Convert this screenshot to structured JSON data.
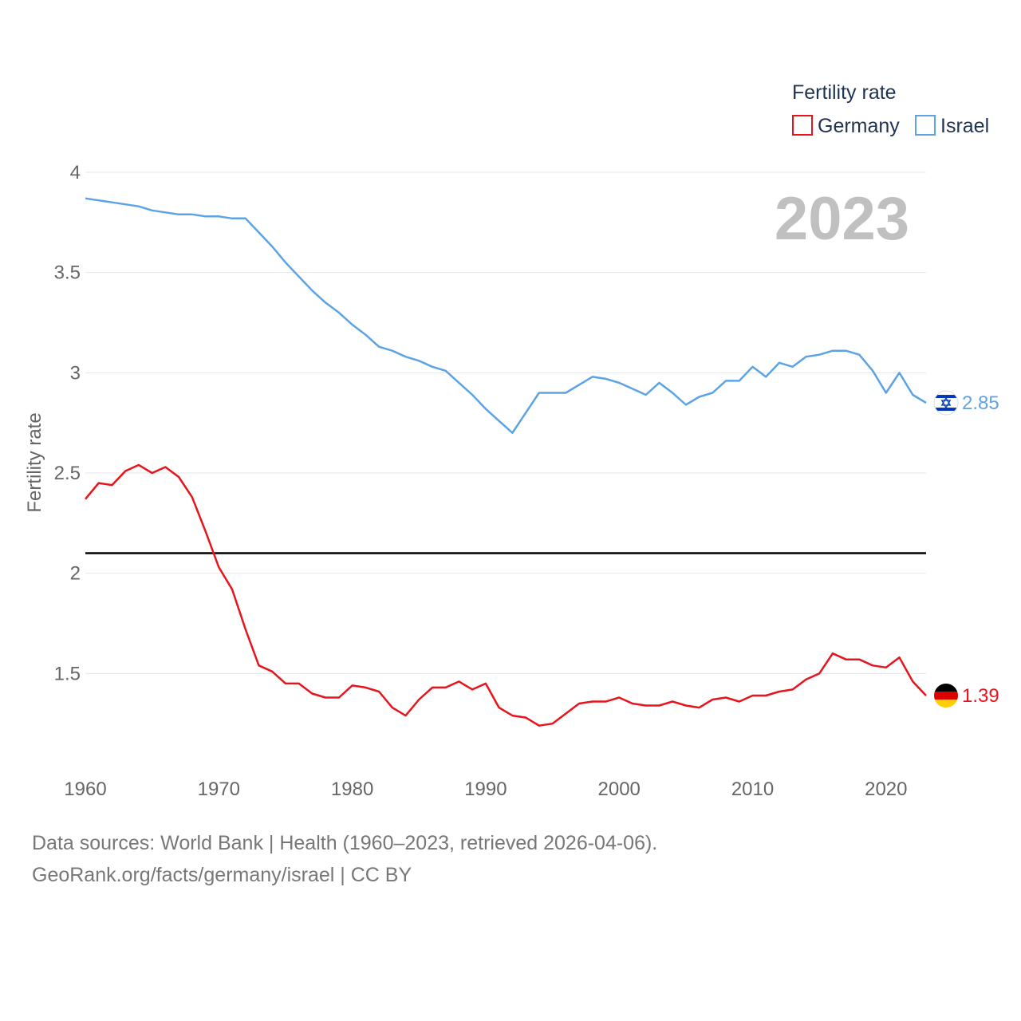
{
  "chart_data": {
    "type": "line",
    "ylabel": "Fertility rate",
    "xlabel": "",
    "ylim": [
      1.0,
      4.0
    ],
    "xlim": [
      1960,
      2023
    ],
    "y_ticks": [
      1.5,
      2,
      2.5,
      3,
      3.5,
      4
    ],
    "y_tick_labels": [
      "1.5",
      "2",
      "2.5",
      "3",
      "3.5",
      "4"
    ],
    "x_ticks": [
      1960,
      1970,
      1980,
      1990,
      2000,
      2010,
      2020
    ],
    "x_tick_labels": [
      "1960",
      "1970",
      "1980",
      "1990",
      "2000",
      "2010",
      "2020"
    ],
    "current_year_label": "2023",
    "reference_line": {
      "y": 2.1,
      "color": "#000000"
    },
    "legend": {
      "title": "Fertility rate",
      "position": "top-right"
    },
    "x": [
      1960,
      1961,
      1962,
      1963,
      1964,
      1965,
      1966,
      1967,
      1968,
      1969,
      1970,
      1971,
      1972,
      1973,
      1974,
      1975,
      1976,
      1977,
      1978,
      1979,
      1980,
      1981,
      1982,
      1983,
      1984,
      1985,
      1986,
      1987,
      1988,
      1989,
      1990,
      1991,
      1992,
      1993,
      1994,
      1995,
      1996,
      1997,
      1998,
      1999,
      2000,
      2001,
      2002,
      2003,
      2004,
      2005,
      2006,
      2007,
      2008,
      2009,
      2010,
      2011,
      2012,
      2013,
      2014,
      2015,
      2016,
      2017,
      2018,
      2019,
      2020,
      2021,
      2022,
      2023
    ],
    "series": [
      {
        "name": "Germany",
        "color": "#e8141c",
        "flag": "germany-flag",
        "end_label": "1.39",
        "values": [
          2.37,
          2.45,
          2.44,
          2.51,
          2.54,
          2.5,
          2.53,
          2.48,
          2.38,
          2.21,
          2.03,
          1.92,
          1.72,
          1.54,
          1.51,
          1.45,
          1.45,
          1.4,
          1.38,
          1.38,
          1.44,
          1.43,
          1.41,
          1.33,
          1.29,
          1.37,
          1.43,
          1.43,
          1.46,
          1.42,
          1.45,
          1.33,
          1.29,
          1.28,
          1.24,
          1.25,
          1.3,
          1.35,
          1.36,
          1.36,
          1.38,
          1.35,
          1.34,
          1.34,
          1.36,
          1.34,
          1.33,
          1.37,
          1.38,
          1.36,
          1.39,
          1.39,
          1.41,
          1.42,
          1.47,
          1.5,
          1.6,
          1.57,
          1.57,
          1.54,
          1.53,
          1.58,
          1.46,
          1.39
        ]
      },
      {
        "name": "Israel",
        "color": "#5ca3e6",
        "flag": "israel-flag",
        "end_label": "2.85",
        "values": [
          3.87,
          3.86,
          3.85,
          3.84,
          3.83,
          3.81,
          3.8,
          3.79,
          3.79,
          3.78,
          3.78,
          3.77,
          3.77,
          3.7,
          3.63,
          3.55,
          3.48,
          3.41,
          3.35,
          3.3,
          3.24,
          3.19,
          3.13,
          3.11,
          3.08,
          3.06,
          3.03,
          3.01,
          2.95,
          2.89,
          2.82,
          2.76,
          2.7,
          2.8,
          2.9,
          2.9,
          2.9,
          2.94,
          2.98,
          2.97,
          2.95,
          2.92,
          2.89,
          2.95,
          2.9,
          2.84,
          2.88,
          2.9,
          2.96,
          2.96,
          3.03,
          2.98,
          3.05,
          3.03,
          3.08,
          3.09,
          3.11,
          3.11,
          3.09,
          3.01,
          2.9,
          3.0,
          2.89,
          2.85
        ]
      }
    ]
  },
  "footer": {
    "sources": "Data sources: World Bank | Health (1960–2023, retrieved 2026-04-06).",
    "link": "GeoRank.org/facts/germany/israel | CC BY"
  }
}
